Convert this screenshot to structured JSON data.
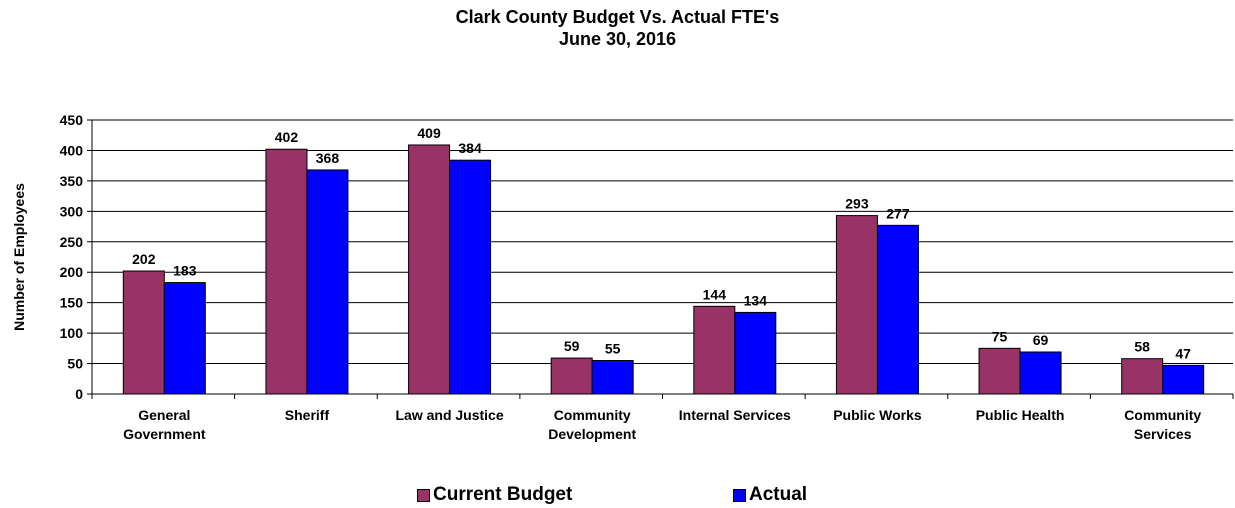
{
  "chart_data": {
    "type": "bar",
    "title": "Clark County Budget Vs. Actual FTE's",
    "subtitle": "June 30, 2016",
    "ylabel": "Number of Employees",
    "xlabel": "",
    "ylim": [
      0,
      450
    ],
    "yticks": [
      0,
      50,
      100,
      150,
      200,
      250,
      300,
      350,
      400,
      450
    ],
    "grid": true,
    "legend_position": "bottom",
    "categories": [
      [
        "General",
        "Government"
      ],
      [
        "Sheriff"
      ],
      [
        "Law and Justice"
      ],
      [
        "Community",
        "Development"
      ],
      [
        "Internal Services"
      ],
      [
        "Public Works"
      ],
      [
        "Public Health"
      ],
      [
        "Community",
        "Services"
      ]
    ],
    "series": [
      {
        "name": "Current Budget",
        "color": "#993366",
        "values": [
          202,
          402,
          409,
          59,
          144,
          293,
          75,
          58
        ]
      },
      {
        "name": "Actual",
        "color": "#0000ff",
        "values": [
          183,
          368,
          384,
          55,
          134,
          277,
          69,
          47
        ]
      }
    ]
  }
}
